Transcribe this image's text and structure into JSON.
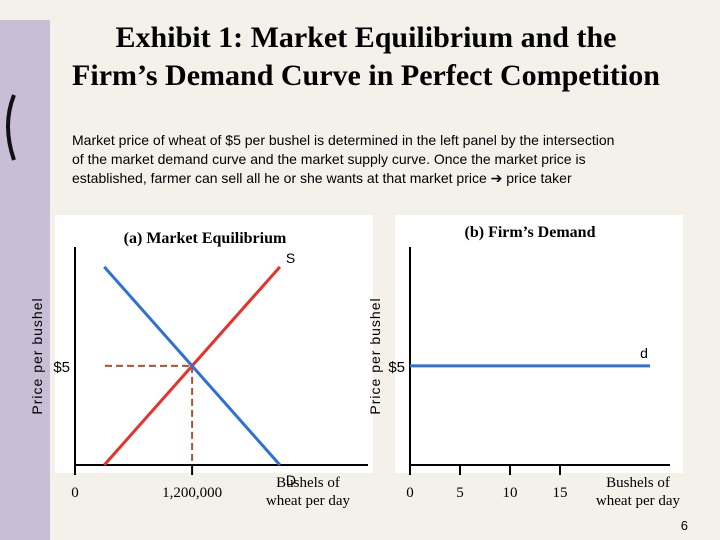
{
  "title": [
    "Exhibit 1: Market Equilibrium and the",
    "Firm’s Demand Curve in Perfect Competition"
  ],
  "body": [
    "Market price of wheat of $5 per bushel  is determined in the left panel by the intersection",
    "of the market demand curve and the market supply curve.  Once the market price is",
    "established, farmer can sell all he or she wants at that market price ➔ price taker"
  ],
  "page_number": "6",
  "chart_data": [
    {
      "type": "line",
      "title": "(a) Market Equilibrium",
      "y_label": "Price per bushel",
      "x_label": [
        "Bushels of",
        "wheat per day"
      ],
      "x": [
        300000,
        2100000
      ],
      "xlim": [
        0,
        2900000
      ],
      "ylim": [
        0,
        11
      ],
      "xticks": [
        0,
        {
          "value": 1200000,
          "label": "1,200,000"
        }
      ],
      "yticks": [
        {
          "value": 5,
          "label": "$5"
        }
      ],
      "guides": true,
      "series": [
        {
          "name": "S",
          "color": "#e8312a",
          "values": [
            0,
            10
          ]
        },
        {
          "name": "D",
          "color": "#2e6fd8",
          "values": [
            10,
            0
          ]
        }
      ]
    },
    {
      "type": "line",
      "title": "(b) Firm’s Demand",
      "y_label": "Price per bushel",
      "x_label": [
        "Bushels of",
        "wheat per day"
      ],
      "x": [
        0,
        24
      ],
      "xlim": [
        0,
        25
      ],
      "ylim": [
        0,
        11
      ],
      "xticks": [
        0,
        5,
        10,
        15
      ],
      "yticks": [
        {
          "value": 5,
          "label": "$5"
        }
      ],
      "guides": false,
      "series": [
        {
          "name": "d",
          "color": "#2e6fd8",
          "values": [
            5,
            5
          ]
        }
      ]
    }
  ]
}
